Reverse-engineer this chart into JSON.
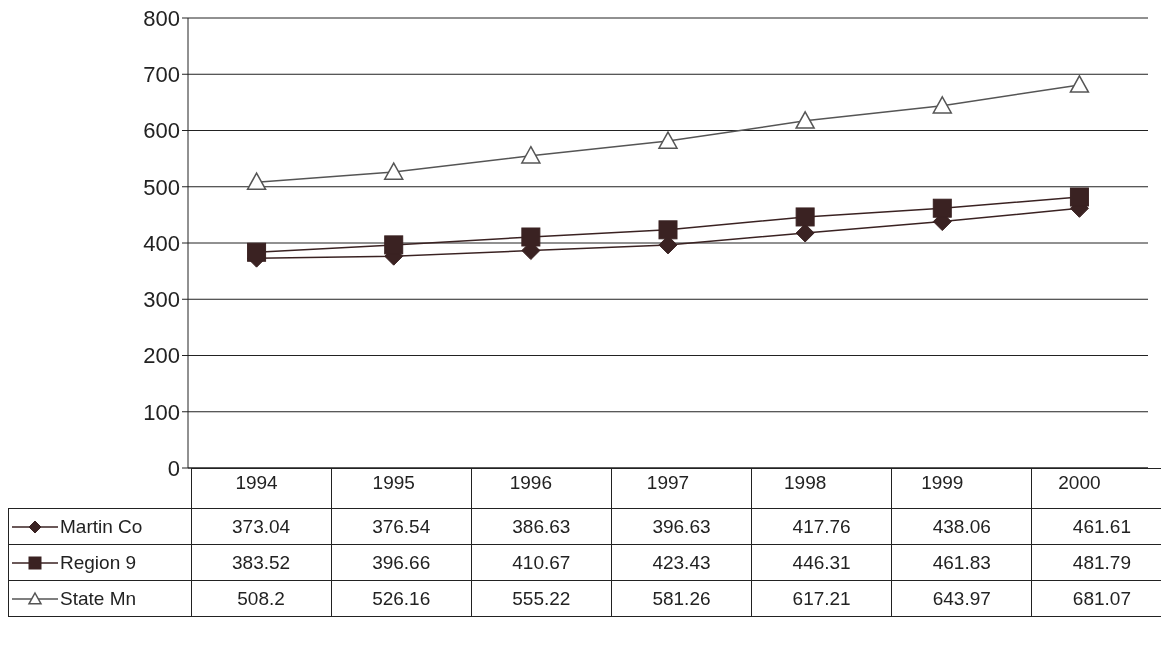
{
  "chart_data": {
    "type": "line",
    "categories": [
      "1994",
      "1995",
      "1996",
      "1997",
      "1998",
      "1999",
      "2000"
    ],
    "series": [
      {
        "name": "Martin Co",
        "color": "#3a2222",
        "marker": "diamond",
        "values": [
          373.04,
          376.54,
          386.63,
          396.63,
          417.76,
          438.06,
          461.61
        ]
      },
      {
        "name": "Region 9",
        "color": "#3a2222",
        "marker": "square",
        "values": [
          383.52,
          396.66,
          410.67,
          423.43,
          446.31,
          461.83,
          481.79
        ]
      },
      {
        "name": "State Mn",
        "color": "#555555",
        "marker": "triangle",
        "values": [
          508.2,
          526.16,
          555.22,
          581.26,
          617.21,
          643.97,
          681.07
        ]
      }
    ],
    "ylim": [
      0,
      800
    ],
    "yticks": [
      0,
      100,
      200,
      300,
      400,
      500,
      600,
      700,
      800
    ],
    "grid": "y",
    "data_labels": true,
    "legend": "bottom left"
  }
}
